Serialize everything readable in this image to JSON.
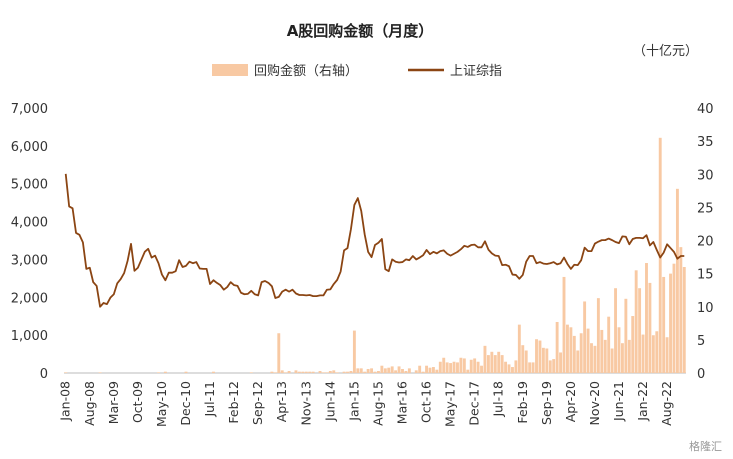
{
  "chart_data": {
    "type": "bar+line",
    "title": "A股回购金额（月度）",
    "unit_label": "（十亿元）",
    "legend": [
      {
        "name": "回购金额（右轴）",
        "kind": "bar",
        "color": "#f8c9a3"
      },
      {
        "name": "上证综指",
        "kind": "line",
        "color": "#8b4513"
      }
    ],
    "left_axis": {
      "ticks": [
        "0",
        "1,000",
        "2,000",
        "3,000",
        "4,000",
        "5,000",
        "6,000",
        "7,000"
      ],
      "ylim": [
        0,
        7000
      ]
    },
    "right_axis": {
      "ticks": [
        "0",
        "5",
        "10",
        "15",
        "20",
        "25",
        "30",
        "35",
        "40"
      ],
      "ylim": [
        0,
        40
      ]
    },
    "x_tick_labels": [
      "Jan-08",
      "Aug-08",
      "Mar-09",
      "Oct-09",
      "May-10",
      "Dec-10",
      "Jul-11",
      "Feb-12",
      "Sep-12",
      "Apr-13",
      "Nov-13",
      "Jun-14",
      "Jan-15",
      "Aug-15",
      "Mar-16",
      "Oct-16",
      "May-17",
      "Dec-17",
      "Jul-18",
      "Feb-19",
      "Sep-19",
      "Apr-20",
      "Nov-20",
      "Jun-21",
      "Jan-22",
      "Aug-22"
    ],
    "start_month": "2008-01",
    "line_series": {
      "name": "上证综指",
      "keypoints": [
        [
          0,
          5260
        ],
        [
          1,
          4400
        ],
        [
          2,
          4350
        ],
        [
          3,
          3700
        ],
        [
          4,
          3650
        ],
        [
          5,
          3450
        ],
        [
          6,
          2750
        ],
        [
          7,
          2780
        ],
        [
          8,
          2400
        ],
        [
          9,
          2300
        ],
        [
          10,
          1750
        ],
        [
          11,
          1850
        ],
        [
          12,
          1820
        ],
        [
          13,
          1990
        ],
        [
          14,
          2080
        ],
        [
          15,
          2370
        ],
        [
          16,
          2480
        ],
        [
          17,
          2640
        ],
        [
          18,
          2960
        ],
        [
          19,
          3410
        ],
        [
          20,
          2700
        ],
        [
          21,
          2780
        ],
        [
          22,
          2990
        ],
        [
          23,
          3200
        ],
        [
          24,
          3280
        ],
        [
          25,
          3050
        ],
        [
          26,
          3100
        ],
        [
          27,
          2900
        ],
        [
          28,
          2600
        ],
        [
          29,
          2450
        ],
        [
          30,
          2650
        ],
        [
          31,
          2650
        ],
        [
          32,
          2690
        ],
        [
          33,
          2980
        ],
        [
          34,
          2800
        ],
        [
          35,
          2830
        ],
        [
          36,
          2940
        ],
        [
          37,
          2900
        ],
        [
          38,
          2930
        ],
        [
          39,
          2760
        ],
        [
          40,
          2750
        ],
        [
          41,
          2750
        ],
        [
          42,
          2350
        ],
        [
          43,
          2450
        ],
        [
          44,
          2380
        ],
        [
          45,
          2320
        ],
        [
          46,
          2200
        ],
        [
          47,
          2270
        ],
        [
          48,
          2400
        ],
        [
          49,
          2320
        ],
        [
          50,
          2300
        ],
        [
          51,
          2120
        ],
        [
          52,
          2080
        ],
        [
          53,
          2090
        ],
        [
          54,
          2170
        ],
        [
          55,
          2080
        ],
        [
          56,
          2050
        ],
        [
          57,
          2400
        ],
        [
          58,
          2430
        ],
        [
          59,
          2380
        ],
        [
          60,
          2290
        ],
        [
          61,
          1980
        ],
        [
          62,
          2010
        ],
        [
          63,
          2150
        ],
        [
          64,
          2200
        ],
        [
          65,
          2150
        ],
        [
          66,
          2200
        ],
        [
          67,
          2100
        ],
        [
          68,
          2060
        ],
        [
          69,
          2060
        ],
        [
          70,
          2050
        ],
        [
          71,
          2060
        ],
        [
          72,
          2030
        ],
        [
          73,
          2030
        ],
        [
          74,
          2050
        ],
        [
          75,
          2050
        ],
        [
          76,
          2200
        ],
        [
          77,
          2210
        ],
        [
          78,
          2350
        ],
        [
          79,
          2460
        ],
        [
          80,
          2680
        ],
        [
          81,
          3240
        ],
        [
          82,
          3300
        ],
        [
          83,
          3800
        ],
        [
          84,
          4440
        ],
        [
          85,
          4620
        ],
        [
          86,
          4280
        ],
        [
          87,
          3660
        ],
        [
          88,
          3200
        ],
        [
          89,
          3060
        ],
        [
          90,
          3380
        ],
        [
          91,
          3440
        ],
        [
          92,
          3540
        ],
        [
          93,
          2740
        ],
        [
          94,
          2690
        ],
        [
          95,
          3000
        ],
        [
          96,
          2940
        ],
        [
          97,
          2920
        ],
        [
          98,
          2930
        ],
        [
          99,
          3000
        ],
        [
          100,
          2980
        ],
        [
          101,
          3090
        ],
        [
          102,
          3000
        ],
        [
          103,
          3050
        ],
        [
          104,
          3110
        ],
        [
          105,
          3250
        ],
        [
          106,
          3140
        ],
        [
          107,
          3200
        ],
        [
          108,
          3160
        ],
        [
          109,
          3220
        ],
        [
          110,
          3240
        ],
        [
          111,
          3150
        ],
        [
          112,
          3100
        ],
        [
          113,
          3150
        ],
        [
          114,
          3200
        ],
        [
          115,
          3270
        ],
        [
          116,
          3360
        ],
        [
          117,
          3330
        ],
        [
          118,
          3380
        ],
        [
          119,
          3390
        ],
        [
          120,
          3320
        ],
        [
          121,
          3320
        ],
        [
          122,
          3480
        ],
        [
          123,
          3260
        ],
        [
          124,
          3160
        ],
        [
          125,
          3100
        ],
        [
          126,
          3090
        ],
        [
          127,
          2850
        ],
        [
          128,
          2860
        ],
        [
          129,
          2820
        ],
        [
          130,
          2600
        ],
        [
          131,
          2590
        ],
        [
          132,
          2490
        ],
        [
          133,
          2590
        ],
        [
          134,
          2940
        ],
        [
          135,
          3090
        ],
        [
          136,
          3090
        ],
        [
          137,
          2900
        ],
        [
          138,
          2930
        ],
        [
          139,
          2890
        ],
        [
          140,
          2880
        ],
        [
          141,
          2900
        ],
        [
          142,
          2930
        ],
        [
          143,
          2870
        ],
        [
          144,
          2900
        ],
        [
          145,
          3050
        ],
        [
          146,
          2880
        ],
        [
          147,
          2750
        ],
        [
          148,
          2860
        ],
        [
          149,
          2850
        ],
        [
          150,
          2980
        ],
        [
          151,
          3310
        ],
        [
          152,
          3220
        ],
        [
          153,
          3220
        ],
        [
          154,
          3420
        ],
        [
          155,
          3470
        ],
        [
          156,
          3510
        ],
        [
          157,
          3510
        ],
        [
          158,
          3550
        ],
        [
          159,
          3510
        ],
        [
          160,
          3460
        ],
        [
          161,
          3430
        ],
        [
          162,
          3610
        ],
        [
          163,
          3600
        ],
        [
          164,
          3400
        ],
        [
          165,
          3540
        ],
        [
          166,
          3570
        ],
        [
          167,
          3570
        ],
        [
          168,
          3560
        ],
        [
          169,
          3640
        ],
        [
          170,
          3370
        ],
        [
          171,
          3460
        ],
        [
          172,
          3250
        ],
        [
          173,
          3050
        ],
        [
          174,
          3180
        ],
        [
          175,
          3400
        ],
        [
          176,
          3300
        ],
        [
          177,
          3200
        ],
        [
          178,
          3020
        ],
        [
          179,
          3090
        ],
        [
          180,
          3090
        ]
      ]
    },
    "bar_series": {
      "name": "回购金额（右轴）",
      "notable_values": [
        [
          62,
          6.0
        ],
        [
          84,
          6.4
        ],
        [
          145,
          14.5
        ],
        [
          160,
          12.8
        ],
        [
          166,
          15.5
        ],
        [
          173,
          35.5
        ],
        [
          178,
          27.8
        ]
      ]
    }
  },
  "watermark": "格隆汇"
}
